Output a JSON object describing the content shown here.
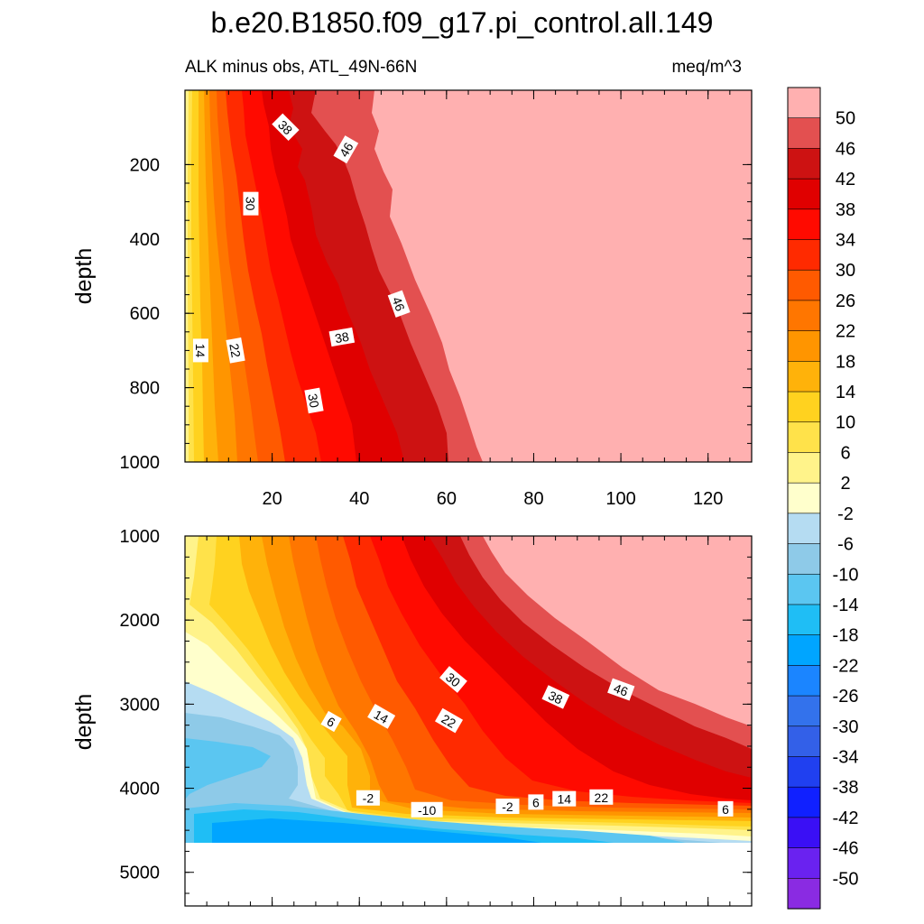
{
  "chart_data": {
    "type": "contour",
    "title": "b.e20.B1850.f09_g17.pi_control.all.149",
    "left_string": "ALK minus obs, ATL_49N-66N",
    "right_string": "meq/m^3",
    "colorbar": {
      "levels": [
        -50,
        -46,
        -42,
        -38,
        -34,
        -30,
        -26,
        -22,
        -18,
        -14,
        -10,
        -6,
        -2,
        2,
        6,
        10,
        14,
        18,
        22,
        26,
        30,
        34,
        38,
        42,
        46,
        50
      ],
      "labels": [
        "50",
        "46",
        "42",
        "38",
        "34",
        "30",
        "26",
        "22",
        "18",
        "14",
        "10",
        "6",
        "2",
        "-2",
        "-6",
        "-10",
        "-14",
        "-18",
        "-22",
        "-26",
        "-30",
        "-34",
        "-38",
        "-42",
        "-46",
        "-50"
      ],
      "colors": [
        "#8a2be2",
        "#6a22f0",
        "#3a0ff5",
        "#1020ff",
        "#2040f0",
        "#3360e8",
        "#3372ec",
        "#1b85ff",
        "#00a5ff",
        "#1fbef5",
        "#5bc6f1",
        "#8ecae8",
        "#b5dcf2",
        "#ffffcc",
        "#fff38a",
        "#ffe24a",
        "#ffd21f",
        "#ffb20a",
        "#ff9500",
        "#ff7600",
        "#ff5a00",
        "#ff2a00",
        "#ff0a00",
        "#e00000",
        "#cd1212",
        "#e35050",
        "#ffb0b0"
      ]
    },
    "panels": [
      {
        "name": "upper",
        "ylabel": "depth",
        "xlabel": "",
        "xlim": [
          0,
          130
        ],
        "ylim": [
          1000,
          0
        ],
        "xticks": [
          20,
          40,
          60,
          80,
          100,
          120
        ],
        "yticks": [
          200,
          400,
          600,
          800,
          1000
        ],
        "contour_labels": [
          {
            "text": "38",
            "x": 23,
            "y": 100,
            "angle": 45
          },
          {
            "text": "46",
            "x": 37,
            "y": 160,
            "angle": -60
          },
          {
            "text": "30",
            "x": 15,
            "y": 305,
            "angle": 90
          },
          {
            "text": "46",
            "x": 49,
            "y": 575,
            "angle": 70
          },
          {
            "text": "38",
            "x": 36,
            "y": 665,
            "angle": -10
          },
          {
            "text": "14",
            "x": 3.5,
            "y": 700,
            "angle": 90
          },
          {
            "text": "22",
            "x": 11.5,
            "y": 700,
            "angle": 80
          },
          {
            "text": "30",
            "x": 29.5,
            "y": 835,
            "angle": 80
          }
        ]
      },
      {
        "name": "lower",
        "ylabel": "depth",
        "xlabel": "",
        "xlim": [
          0,
          130
        ],
        "ylim": [
          5400,
          1000
        ],
        "xticks": [
          20,
          40,
          60,
          80,
          100,
          120
        ],
        "yticks": [
          1000,
          2000,
          3000,
          4000,
          5000
        ],
        "contour_labels": [
          {
            "text": "30",
            "x": 61.5,
            "y": 2710,
            "angle": 40
          },
          {
            "text": "38",
            "x": 85,
            "y": 2920,
            "angle": 25
          },
          {
            "text": "46",
            "x": 100,
            "y": 2830,
            "angle": 20
          },
          {
            "text": "6",
            "x": 33.5,
            "y": 3210,
            "angle": 30
          },
          {
            "text": "14",
            "x": 45,
            "y": 3150,
            "angle": 30
          },
          {
            "text": "22",
            "x": 60.5,
            "y": 3200,
            "angle": 30
          },
          {
            "text": "-2",
            "x": 42,
            "y": 4120,
            "angle": 0
          },
          {
            "text": "-10",
            "x": 55.5,
            "y": 4260,
            "angle": 0
          },
          {
            "text": "-2",
            "x": 74,
            "y": 4220,
            "angle": 0
          },
          {
            "text": "6",
            "x": 80.5,
            "y": 4170,
            "angle": 0
          },
          {
            "text": "14",
            "x": 87,
            "y": 4130,
            "angle": 0
          },
          {
            "text": "22",
            "x": 95.5,
            "y": 4110,
            "angle": 0
          },
          {
            "text": "6",
            "x": 124,
            "y": 4250,
            "angle": 0
          }
        ]
      }
    ]
  }
}
